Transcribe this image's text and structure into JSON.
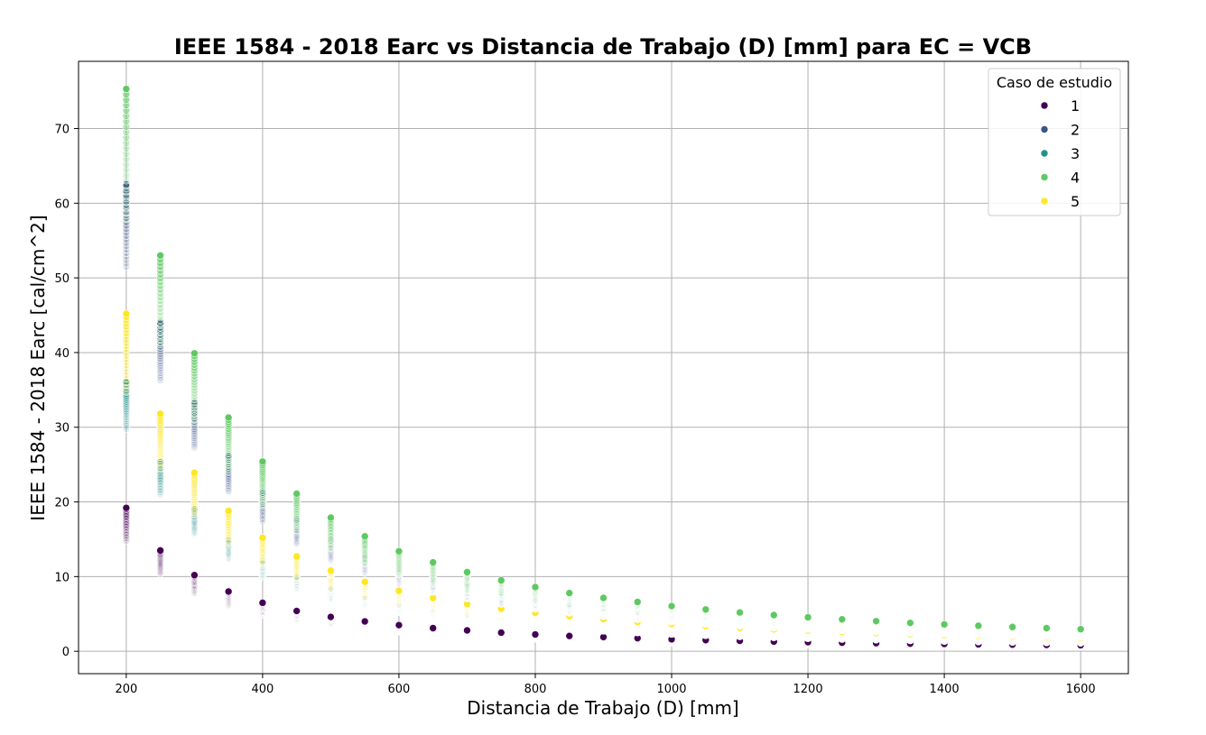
{
  "chart_data": {
    "type": "scatter",
    "title": "IEEE 1584 - 2018 Earc vs Distancia de Trabajo (D) [mm] para EC = VCB",
    "xlabel": "Distancia de Trabajo (D) [mm]",
    "ylabel": "IEEE 1584 - 2018 Earc [cal/cm^2]",
    "xlim": [
      130,
      1670
    ],
    "ylim": [
      -3,
      79
    ],
    "xticks": [
      200,
      400,
      600,
      800,
      1000,
      1200,
      1400,
      1600
    ],
    "yticks": [
      0,
      10,
      20,
      30,
      40,
      50,
      60,
      70
    ],
    "grid": true,
    "legend": {
      "title": "Caso de estudio",
      "position": "top-right"
    },
    "x": [
      200,
      250,
      300,
      350,
      400,
      450,
      500,
      550,
      600,
      650,
      700,
      750,
      800,
      850,
      900,
      950,
      1000,
      1050,
      1100,
      1150,
      1200,
      1250,
      1300,
      1350,
      1400,
      1450,
      1500,
      1550,
      1600
    ],
    "series": [
      {
        "name": "1",
        "color": "#440154",
        "max": [
          19.2,
          13.5,
          10.2,
          8.0,
          6.5,
          5.4,
          4.6,
          4.0,
          3.5,
          3.1,
          2.8,
          2.5,
          2.25,
          2.05,
          1.9,
          1.75,
          1.6,
          1.5,
          1.4,
          1.3,
          1.22,
          1.15,
          1.09,
          1.03,
          0.98,
          0.93,
          0.89,
          0.85,
          0.81
        ],
        "min": [
          14.8,
          10.4,
          7.8,
          6.1,
          4.9,
          4.1,
          3.5,
          3.0,
          2.65,
          2.35,
          2.1,
          1.9,
          1.7,
          1.55,
          1.42,
          1.31,
          1.21,
          1.13,
          1.05,
          0.98,
          0.92,
          0.87,
          0.82,
          0.78,
          0.74,
          0.7,
          0.67,
          0.64,
          0.61
        ]
      },
      {
        "name": "2",
        "color": "#3b528b",
        "max": [
          62.5,
          44.0,
          33.2,
          26.1,
          21.2,
          17.6,
          14.9,
          12.8,
          11.1,
          9.8,
          8.7,
          7.8,
          7.0,
          6.35,
          5.8,
          5.3,
          4.9,
          4.55,
          4.23,
          3.95,
          3.7,
          3.48,
          3.28,
          3.1,
          2.94,
          2.79,
          2.66,
          2.53,
          2.42
        ],
        "min": [
          51.5,
          36.3,
          27.3,
          21.4,
          17.4,
          14.4,
          12.2,
          10.5,
          9.1,
          8.0,
          7.1,
          6.35,
          5.7,
          5.15,
          4.7,
          4.3,
          3.95,
          3.65,
          3.4,
          3.17,
          2.97,
          2.79,
          2.63,
          2.48,
          2.35,
          2.23,
          2.12,
          2.02,
          1.93
        ]
      },
      {
        "name": "3",
        "color": "#21918c",
        "max": [
          36.0,
          25.3,
          19.0,
          14.9,
          12.1,
          10.0,
          8.5,
          7.3,
          6.3,
          5.55,
          4.95,
          4.45,
          4.0,
          3.65,
          3.33,
          3.06,
          2.83,
          2.62,
          2.44,
          2.28,
          2.14,
          2.01,
          1.89,
          1.79,
          1.69,
          1.61,
          1.53,
          1.46,
          1.39
        ],
        "min": [
          29.8,
          21.0,
          15.8,
          12.4,
          10.0,
          8.3,
          7.0,
          6.05,
          5.25,
          4.6,
          4.1,
          3.68,
          3.32,
          3.01,
          2.75,
          2.53,
          2.33,
          2.16,
          2.01,
          1.88,
          1.76,
          1.65,
          1.56,
          1.47,
          1.39,
          1.32,
          1.26,
          1.2,
          1.15
        ]
      },
      {
        "name": "4",
        "color": "#5ec962",
        "max": [
          75.3,
          53.0,
          39.9,
          31.3,
          25.4,
          21.1,
          17.9,
          15.4,
          13.4,
          11.9,
          10.6,
          9.5,
          8.6,
          7.8,
          7.15,
          6.6,
          6.05,
          5.6,
          5.2,
          4.85,
          4.55,
          4.28,
          4.03,
          3.8,
          3.6,
          3.42,
          3.25,
          3.1,
          2.96
        ],
        "min": [
          58.0,
          40.8,
          30.7,
          24.1,
          19.5,
          16.2,
          13.8,
          11.8,
          10.3,
          9.1,
          8.1,
          7.3,
          6.6,
          6.0,
          5.5,
          5.05,
          4.65,
          4.3,
          4.0,
          3.73,
          3.5,
          3.29,
          3.1,
          2.92,
          2.77,
          2.63,
          2.5,
          2.38,
          2.27
        ]
      },
      {
        "name": "5",
        "color": "#fde725",
        "max": [
          45.2,
          31.8,
          23.9,
          18.8,
          15.2,
          12.7,
          10.8,
          9.3,
          8.1,
          7.15,
          6.35,
          5.7,
          5.15,
          4.7,
          4.3,
          3.95,
          3.65,
          3.38,
          3.15,
          2.94,
          2.76,
          2.59,
          2.44,
          2.3,
          2.18,
          2.07,
          1.97,
          1.88,
          1.79
        ],
        "min": [
          34.8,
          24.5,
          18.4,
          14.5,
          11.7,
          9.8,
          8.3,
          7.15,
          6.2,
          5.5,
          4.9,
          4.4,
          3.97,
          3.62,
          3.31,
          3.04,
          2.81,
          2.6,
          2.42,
          2.26,
          2.12,
          1.99,
          1.88,
          1.77,
          1.68,
          1.59,
          1.52,
          1.45,
          1.38
        ]
      }
    ]
  }
}
